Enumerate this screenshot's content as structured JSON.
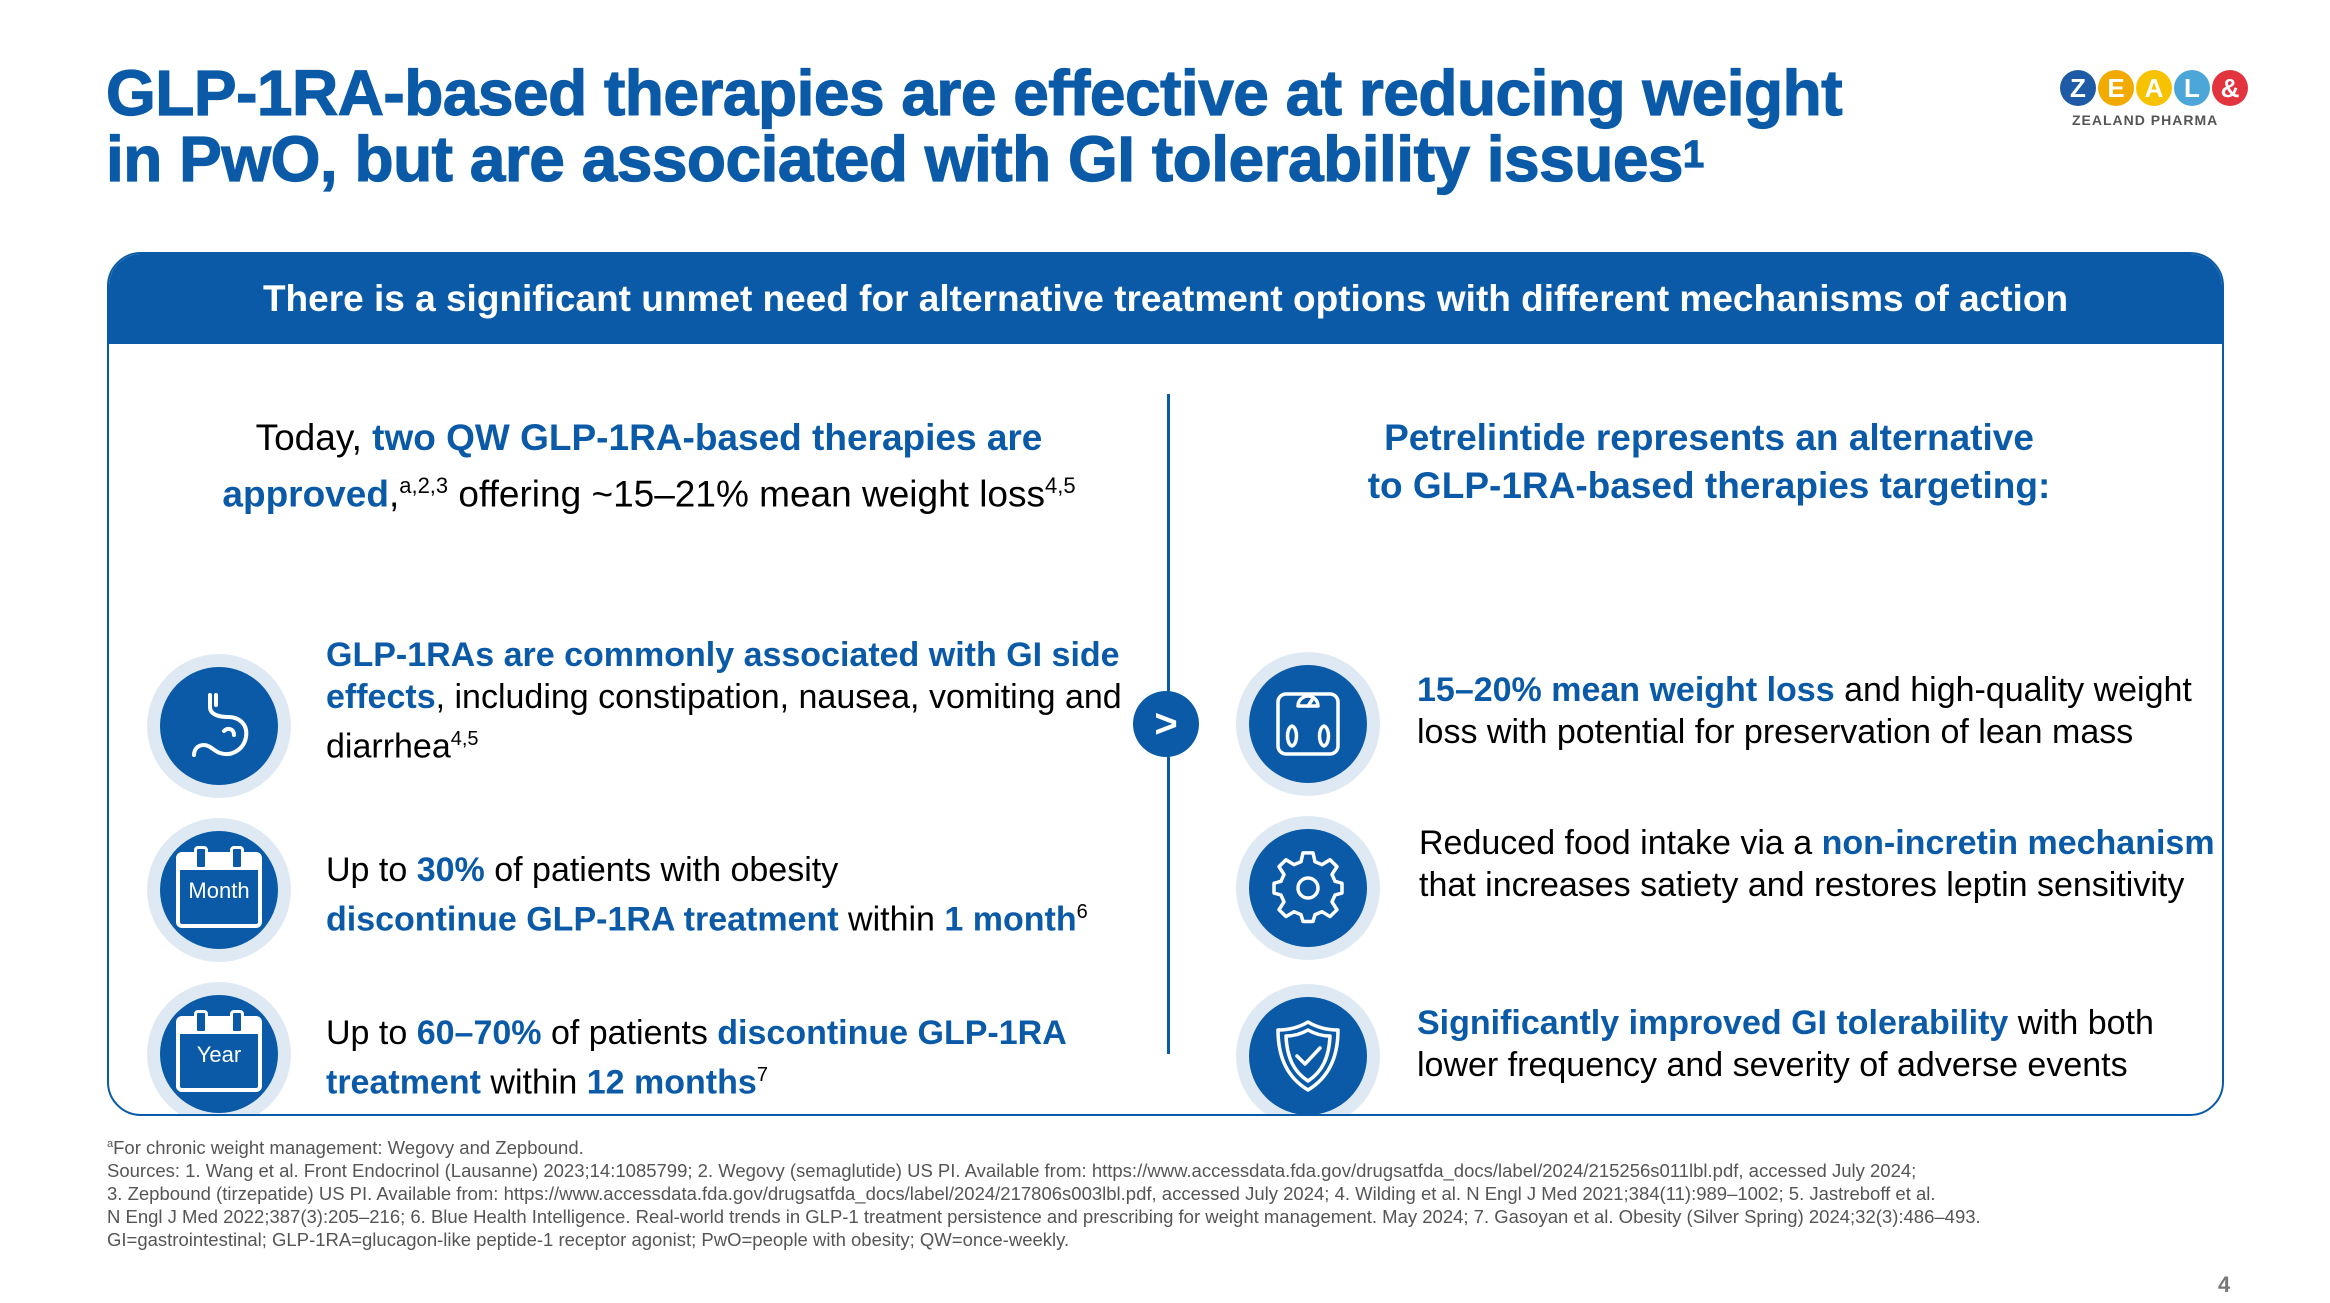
{
  "title": {
    "line1": "GLP-1RA-based therapies are effective at reducing weight",
    "line2": "in PwO, but are associated with GI tolerability issues",
    "sup": "1"
  },
  "logo": {
    "letters": [
      "Z",
      "E",
      "A",
      "L",
      "&"
    ],
    "letter_colors": [
      "#1f5aa6",
      "#f2a900",
      "#f7c300",
      "#4da6d8",
      "#e2343f"
    ],
    "subtitle": "ZEALAND PHARMA"
  },
  "banner": "There is a significant unmet need for alternative treatment options with different mechanisms of action",
  "arrow": ">",
  "left_heading": {
    "pre": "Today, ",
    "highlight": "two QW GLP-1RA-based therapies are approved",
    "comma": ",",
    "sup1": "a,2,3",
    "post": " offering ~15–21% mean weight loss",
    "sup2": "4,5"
  },
  "right_heading": {
    "line1": "Petrelintide represents an alternative",
    "line2": "to GLP-1RA-based therapies targeting:"
  },
  "left_items": [
    {
      "icon": "stomach-icon",
      "bold": "GLP-1RAs are commonly associated with GI side effects",
      "text": ", including constipation, nausea, vomiting and diarrhea",
      "sup": "4,5"
    },
    {
      "icon": "calendar-icon",
      "icon_label": "Month",
      "p1": "Up to ",
      "b1": "30%",
      "p2": " of patients with obesity ",
      "b2": "discontinue GLP-1RA treatment",
      "p3": " within ",
      "b3": "1 month",
      "sup": "6"
    },
    {
      "icon": "calendar-icon",
      "icon_label": "Year",
      "p1": "Up to ",
      "b1": "60–70%",
      "p2": " of patients ",
      "b2": "discontinue GLP-1RA treatment",
      "p3": " within ",
      "b3": "12 months",
      "sup": "7"
    }
  ],
  "right_items": [
    {
      "icon": "scale-icon",
      "bold": "15–20% mean weight loss",
      "text": " and high-quality weight loss with potential for preservation of lean mass"
    },
    {
      "icon": "gear-icon",
      "pre": "Reduced food intake via a ",
      "bold": "non-incretin mechanism",
      "text": " that increases satiety and restores leptin sensitivity"
    },
    {
      "icon": "shield-check-icon",
      "bold": "Significantly improved GI tolerability",
      "text": " with both lower frequency and severity of adverse events"
    }
  ],
  "footnotes": {
    "a_sup": "a",
    "a": "For chronic weight management: Wegovy and Zepbound.",
    "lines": [
      "Sources: 1. Wang et al. Front Endocrinol (Lausanne) 2023;14:1085799; 2. Wegovy (semaglutide) US PI. Available from: https://www.accessdata.fda.gov/drugsatfda_docs/label/2024/215256s011lbl.pdf, accessed July 2024;",
      "3. Zepbound (tirzepatide) US PI. Available from: https://www.accessdata.fda.gov/drugsatfda_docs/label/2024/217806s003lbl.pdf, accessed July 2024; 4. Wilding et al. N Engl J Med 2021;384(11):989–1002; 5. Jastreboff et al.",
      "N Engl J Med 2022;387(3):205–216; 6. Blue Health Intelligence. Real-world trends in GLP-1 treatment persistence and prescribing for weight management. May 2024; 7. Gasoyan et al. Obesity (Silver Spring) 2024;32(3):486–493.",
      "GI=gastrointestinal; GLP-1RA=glucagon-like peptide-1 receptor agonist; PwO=people with obesity; QW=once-weekly."
    ]
  },
  "page_number": "4"
}
